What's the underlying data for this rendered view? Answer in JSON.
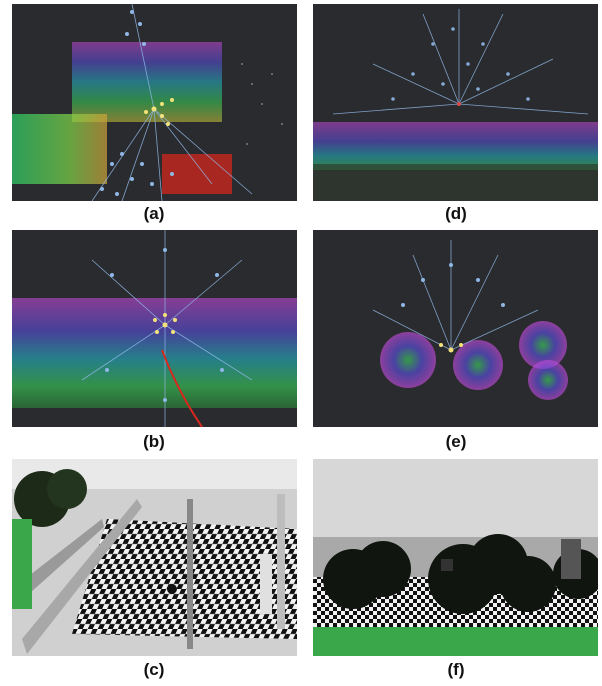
{
  "figure": {
    "panels": [
      {
        "id": "a",
        "caption": "(a)",
        "kind": "point-cloud-rays"
      },
      {
        "id": "b",
        "caption": "(b)",
        "kind": "point-cloud-rays"
      },
      {
        "id": "c",
        "caption": "(c)",
        "kind": "simulation-scene-walls"
      },
      {
        "id": "d",
        "caption": "(d)",
        "kind": "point-cloud-rays"
      },
      {
        "id": "e",
        "caption": "(e)",
        "kind": "point-cloud-rays"
      },
      {
        "id": "f",
        "caption": "(f)",
        "kind": "simulation-scene-trees"
      }
    ],
    "colors": {
      "background_dark": "#2a2b2e",
      "ray_blue": "#8fb7e6",
      "ray_yellow": "#f3e37a",
      "grid_white": "#cfcfcf",
      "ground_green": "#3aa84a"
    }
  }
}
